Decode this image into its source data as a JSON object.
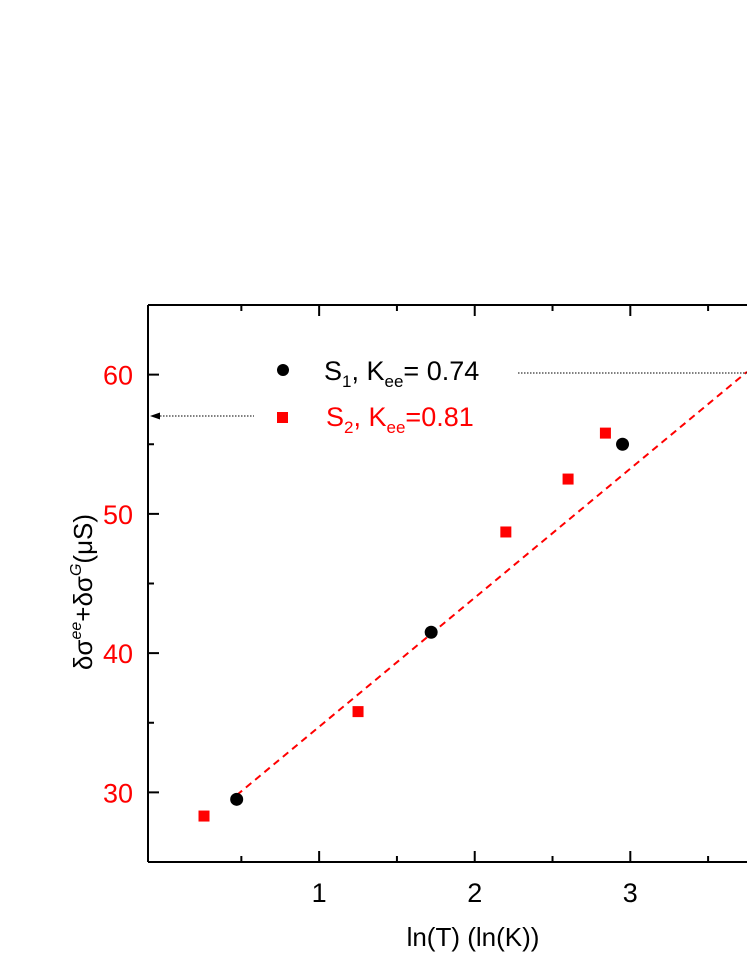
{
  "chart_data": {
    "type": "scatter",
    "xlabel": "ln(T) (ln(K))",
    "ylabel": {
      "delta1": "δσ",
      "sup1": "ee",
      "plus": "+",
      "delta2": "δσ",
      "sup2": "G",
      "unit": "(μS)"
    },
    "xlim": [
      -0.1,
      3.75
    ],
    "ylim": [
      25,
      65
    ],
    "x_ticks": [
      1,
      2,
      3
    ],
    "x_tick_labels": [
      "1",
      "2",
      "3"
    ],
    "y_ticks": [
      30,
      40,
      50,
      60
    ],
    "y_tick_labels": [
      "30",
      "40",
      "50",
      "60"
    ],
    "grid": false,
    "legend_position": "top-center",
    "colors": {
      "s1": "#000000",
      "s2": "#ff0000",
      "axis": "#000000",
      "y_tick_labels": "#ff0000"
    },
    "series": [
      {
        "label": {
          "base": "S",
          "sub": "1",
          "mid": ", K",
          "sub2": "ee",
          "tail": "= 0.74"
        },
        "marker": "circle",
        "points": [
          {
            "x": 0.47,
            "y": 29.5
          },
          {
            "x": 1.72,
            "y": 41.5
          },
          {
            "x": 2.95,
            "y": 55.0
          }
        ]
      },
      {
        "label": {
          "base": "S",
          "sub": "2",
          "mid": ", K",
          "sub2": "ee",
          "tail": "=0.81"
        },
        "marker": "square",
        "points": [
          {
            "x": 0.26,
            "y": 28.3
          },
          {
            "x": 1.25,
            "y": 35.8
          },
          {
            "x": 2.2,
            "y": 48.7
          },
          {
            "x": 2.6,
            "y": 52.5
          },
          {
            "x": 2.84,
            "y": 55.8
          }
        ]
      }
    ],
    "fit_line": {
      "style": "dashed",
      "x": [
        0.47,
        3.75
      ],
      "y": [
        29.8,
        60.2
      ]
    },
    "annotation_arrows": [
      {
        "direction": "left",
        "points_to": "y-axis"
      },
      {
        "direction": "right",
        "points_to": "right-axis"
      }
    ]
  }
}
